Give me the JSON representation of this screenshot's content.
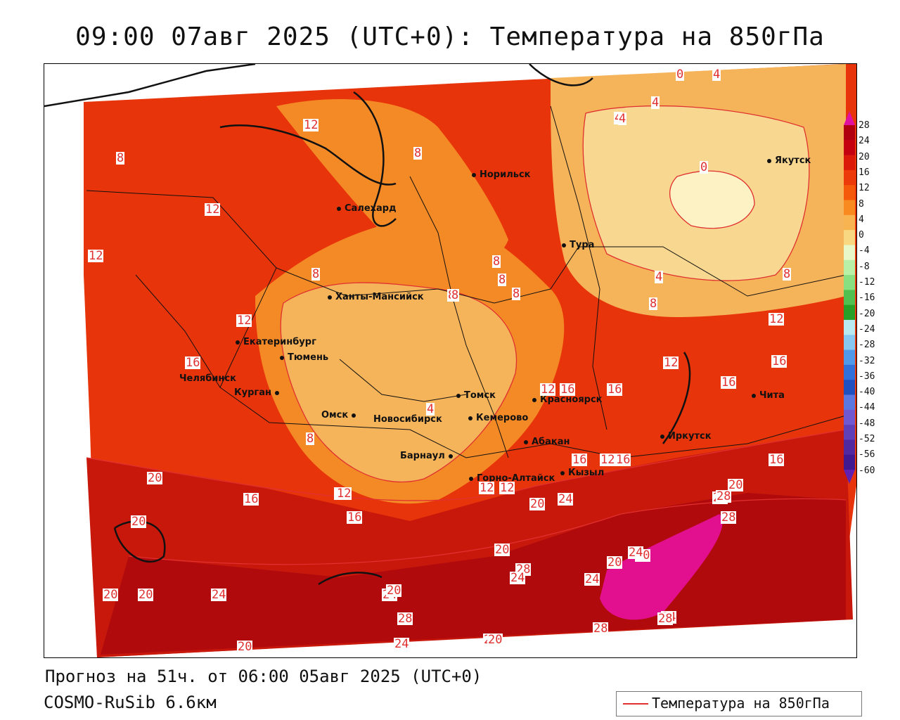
{
  "title": "09:00 07авг 2025 (UTC+0): Температура на 850гПа",
  "footer": {
    "forecast": "Прогноз на 51ч. от 06:00 05авг 2025 (UTC+0)",
    "model": "COSMO-RuSib 6.6км"
  },
  "legend": {
    "label": "Температура на 850гПа",
    "line_color": "#e03030"
  },
  "colorbar": {
    "labels": [
      "28",
      "24",
      "20",
      "16",
      "12",
      "8",
      "4",
      "0",
      "-4",
      "-8",
      "-12",
      "-16",
      "-20",
      "-24",
      "-28",
      "-32",
      "-36",
      "-40",
      "-44",
      "-48",
      "-52",
      "-56",
      "-60"
    ],
    "colors": [
      "#b00010",
      "#c40010",
      "#dc1a0a",
      "#ec3a0a",
      "#f45a0a",
      "#f88a20",
      "#f8b450",
      "#f8d880",
      "#e8f8c8",
      "#b8f0a8",
      "#88e080",
      "#50c050",
      "#28a028",
      "#b8e8f0",
      "#88c8f0",
      "#5098e8",
      "#3070d8",
      "#2050c0",
      "#5a78e0",
      "#7058d0",
      "#6040b8",
      "#5028a0",
      "#401890"
    ]
  },
  "cities": [
    {
      "name": "Норильск"
    },
    {
      "name": "Салехард"
    },
    {
      "name": "Тура"
    },
    {
      "name": "Якутск"
    },
    {
      "name": "Ханты-Мансийск"
    },
    {
      "name": "Екатеринбург"
    },
    {
      "name": "Тюмень"
    },
    {
      "name": "Челябинск"
    },
    {
      "name": "Курган"
    },
    {
      "name": "Омск"
    },
    {
      "name": "Новосибирск"
    },
    {
      "name": "Томск"
    },
    {
      "name": "Кемерово"
    },
    {
      "name": "Красноярск"
    },
    {
      "name": "Абакан"
    },
    {
      "name": "Барнаул"
    },
    {
      "name": "Горно-Алтайск"
    },
    {
      "name": "Кызыл"
    },
    {
      "name": "Иркутск"
    },
    {
      "name": "Чита"
    }
  ],
  "isotherm_labels": [
    "12",
    "8",
    "8",
    "12",
    "8",
    "8",
    "8",
    "8",
    "8",
    "4",
    "4",
    "0",
    "4",
    "0",
    "4",
    "8",
    "4",
    "8",
    "8",
    "12",
    "12",
    "12",
    "16",
    "16",
    "12",
    "12",
    "16",
    "16",
    "16",
    "16",
    "16",
    "12",
    "12",
    "20",
    "16",
    "20",
    "16",
    "12",
    "12",
    "16",
    "20",
    "20",
    "20",
    "24",
    "24",
    "28",
    "24",
    "28",
    "20",
    "28",
    "20",
    "24",
    "24",
    "28",
    "24",
    "28",
    "20",
    "20",
    "24",
    "24",
    "20",
    "20",
    "28",
    "24",
    "20",
    "12",
    "20",
    "4",
    "8"
  ]
}
